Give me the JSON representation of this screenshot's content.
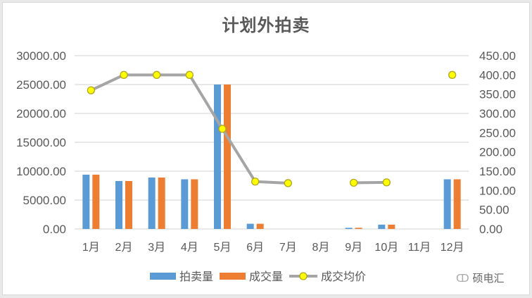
{
  "chart_data": {
    "type": "bar+line",
    "title": "计划外拍卖",
    "categories": [
      "1月",
      "2月",
      "3月",
      "4月",
      "5月",
      "6月",
      "7月",
      "8月",
      "9月",
      "10月",
      "11月",
      "12月"
    ],
    "series": [
      {
        "name": "拍卖量",
        "type": "bar",
        "axis": "left",
        "color": "#5B9BD5",
        "values": [
          9400,
          8300,
          8900,
          8600,
          25000,
          900,
          0,
          0,
          200,
          750,
          0,
          8600
        ]
      },
      {
        "name": "成交量",
        "type": "bar",
        "axis": "left",
        "color": "#ED7D31",
        "values": [
          9400,
          8300,
          8900,
          8600,
          25000,
          900,
          0,
          0,
          200,
          750,
          0,
          8600
        ]
      },
      {
        "name": "成交均价",
        "type": "line",
        "axis": "right",
        "color": "#A5A5A5",
        "marker_color": "#FFFF00",
        "values": [
          360,
          400,
          400,
          400,
          260,
          123,
          119,
          null,
          120,
          121,
          null,
          400
        ]
      }
    ],
    "left_axis": {
      "ticks": [
        "0.00",
        "5000.00",
        "10000.00",
        "15000.00",
        "20000.00",
        "25000.00",
        "30000.00"
      ],
      "ylim": [
        0,
        30000
      ]
    },
    "right_axis": {
      "ticks": [
        "0.00",
        "50.00",
        "100.00",
        "150.00",
        "200.00",
        "250.00",
        "300.00",
        "350.00",
        "400.00",
        "450.00"
      ],
      "ylim": [
        0,
        450
      ]
    },
    "grid": true,
    "legend_position": "bottom"
  },
  "legend": [
    {
      "label": "拍卖量"
    },
    {
      "label": "成交量"
    },
    {
      "label": "成交均价"
    }
  ],
  "watermark": {
    "icon": "wechat-icon",
    "text": "硕电汇"
  }
}
